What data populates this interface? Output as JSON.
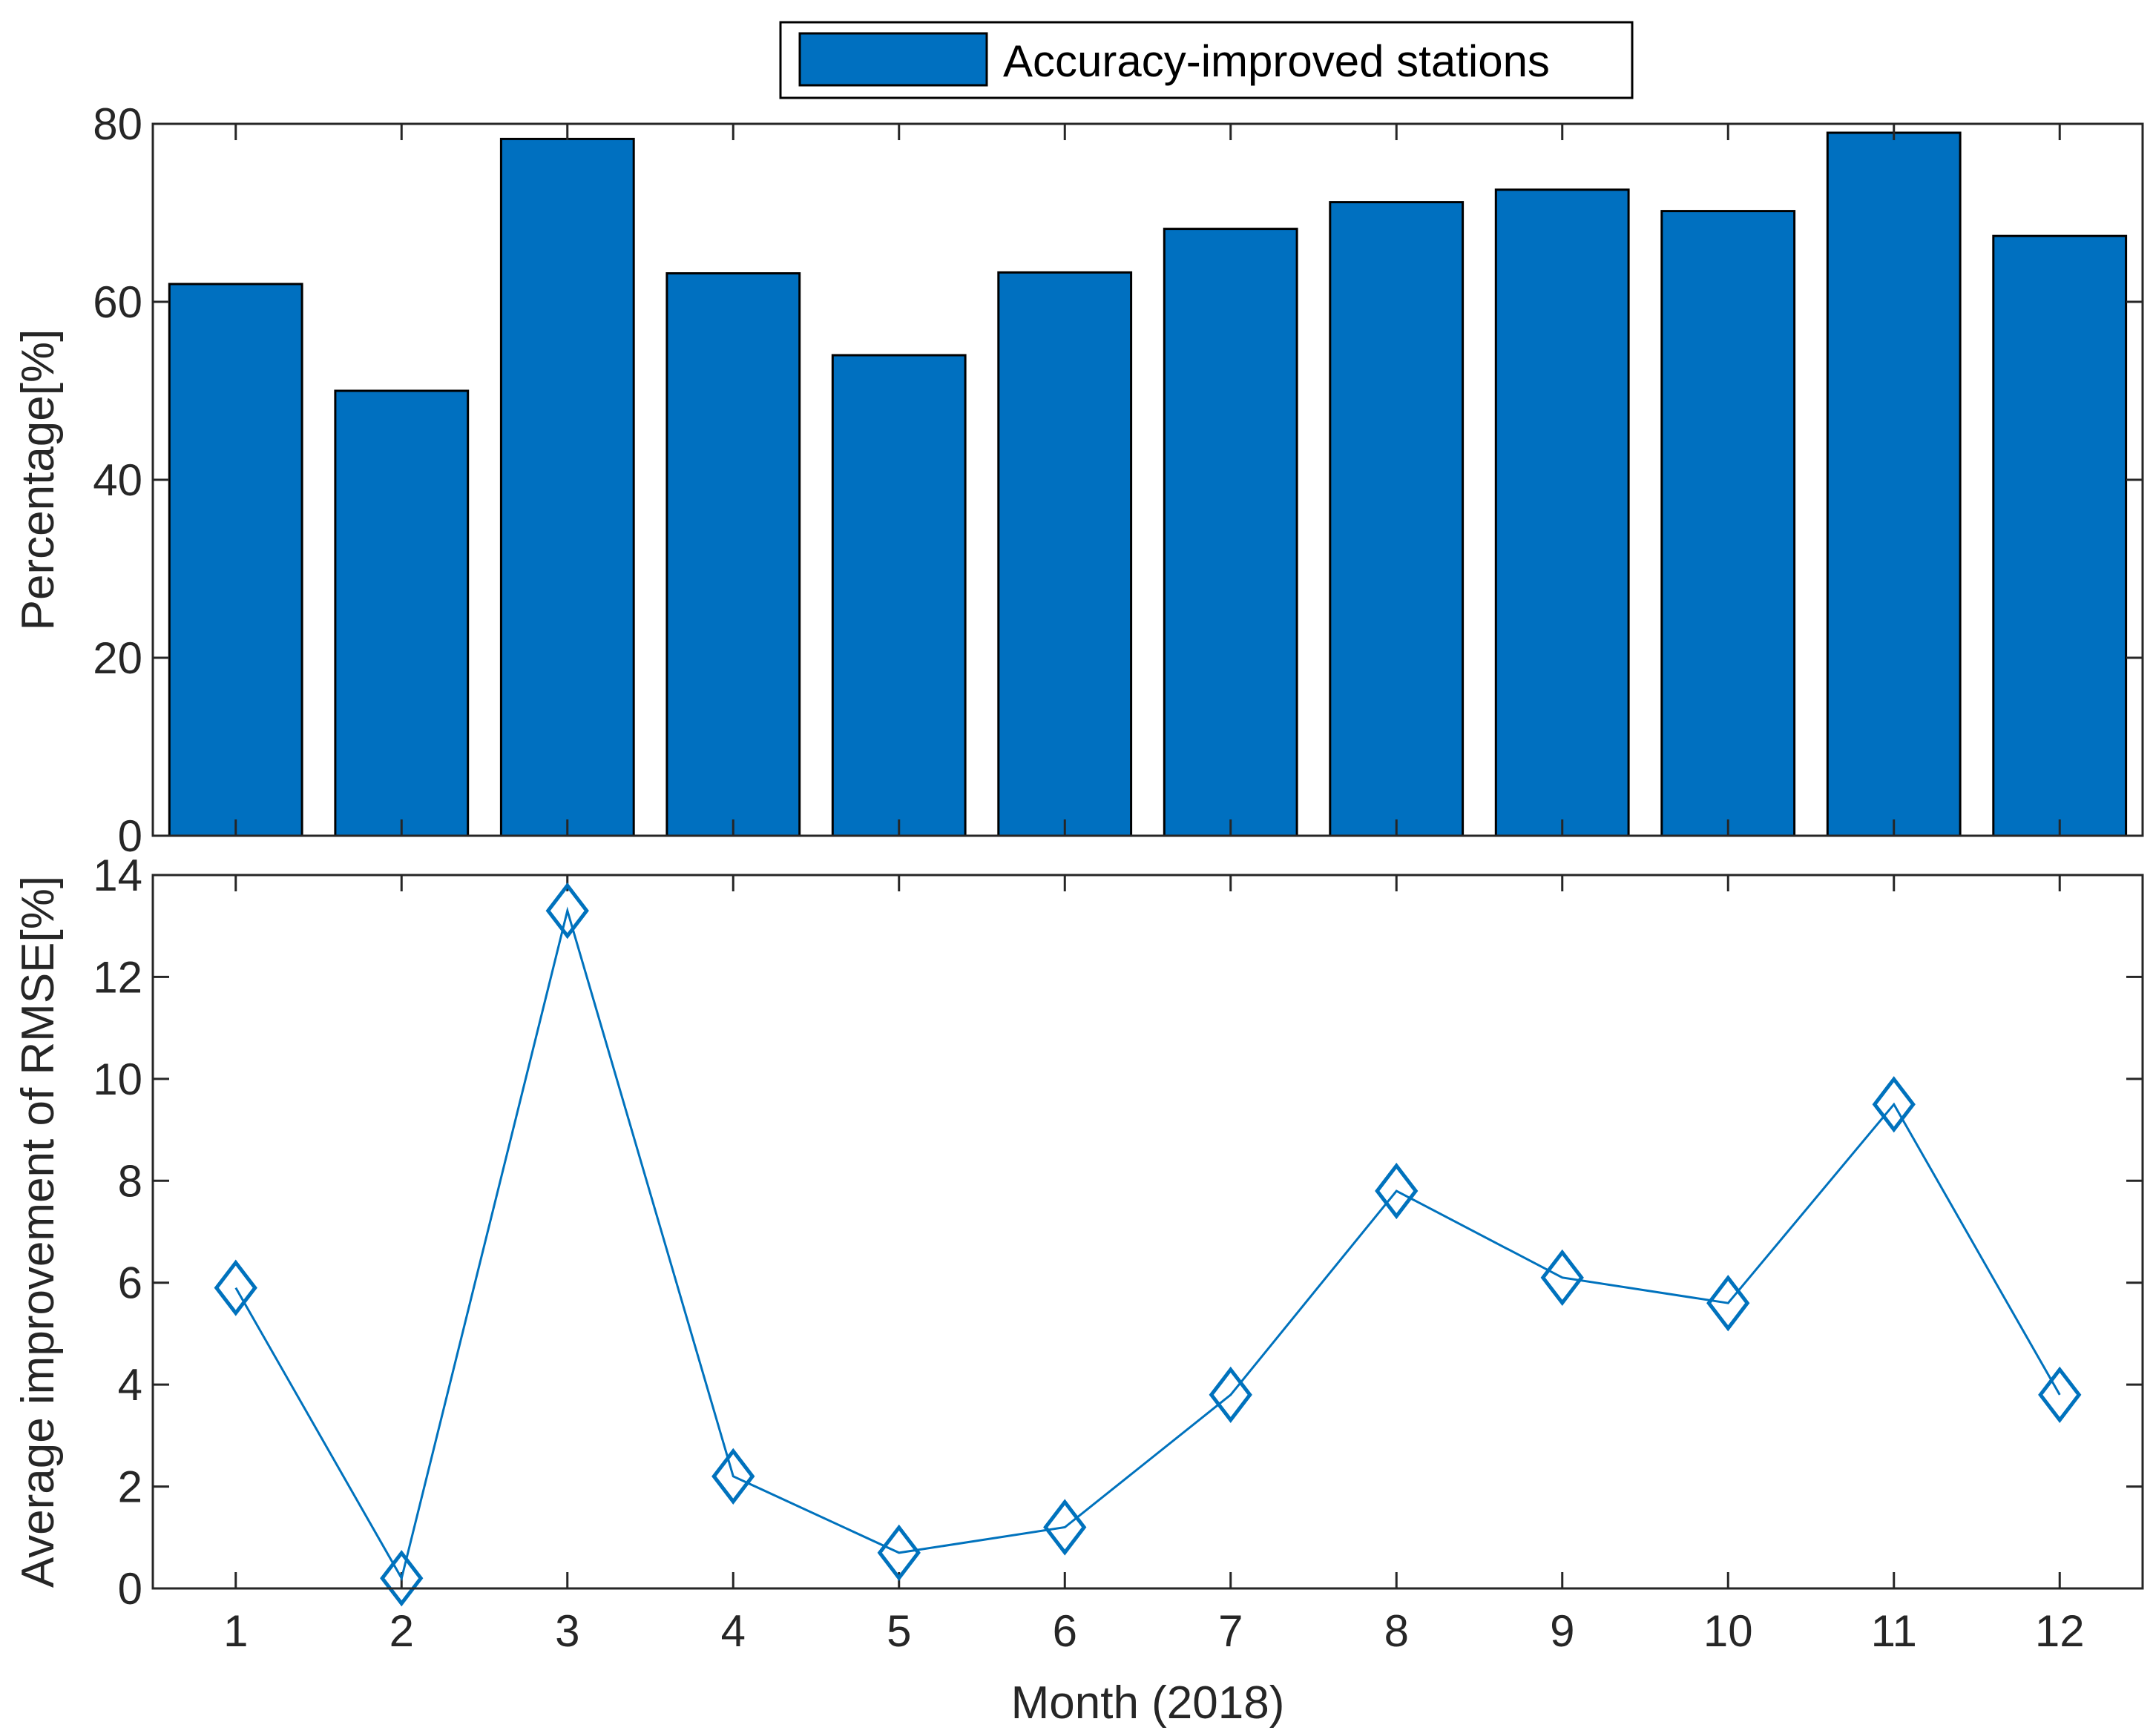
{
  "chart_data": [
    {
      "type": "bar",
      "title": "",
      "categories": [
        "1",
        "2",
        "3",
        "4",
        "5",
        "6",
        "7",
        "8",
        "9",
        "10",
        "11",
        "12"
      ],
      "values": [
        62,
        50,
        78.3,
        63.2,
        54,
        63.3,
        68.2,
        71.2,
        72.6,
        70.2,
        79,
        67.4
      ],
      "xlabel": "",
      "ylabel": "Percentage[%]",
      "ylim": [
        0,
        80
      ],
      "xlim": [
        0.5,
        12.5
      ],
      "yticks": [
        "0",
        "20",
        "40",
        "60",
        "80"
      ],
      "grid": false,
      "legend": {
        "entries": [
          "Accuracy-improved stations"
        ],
        "placement": "top-center-outside"
      },
      "colors": {
        "bar_fill": "#0070C0",
        "bar_edge": "#000000"
      }
    },
    {
      "type": "line",
      "title": "",
      "x": [
        1,
        2,
        3,
        4,
        5,
        6,
        7,
        8,
        9,
        10,
        11,
        12
      ],
      "values": [
        5.9,
        0.2,
        13.3,
        2.2,
        0.7,
        1.2,
        3.8,
        7.8,
        6.1,
        5.6,
        9.5,
        3.8
      ],
      "marker": "diamond",
      "xlabel": "Month (2018)",
      "ylabel": "Average improvement of RMSE[%]",
      "ylim": [
        0,
        14
      ],
      "xlim": [
        0.5,
        12.5
      ],
      "xticks": [
        "1",
        "2",
        "3",
        "4",
        "5",
        "6",
        "7",
        "8",
        "9",
        "10",
        "11",
        "12"
      ],
      "yticks": [
        "0",
        "2",
        "4",
        "6",
        "8",
        "10",
        "12",
        "14"
      ],
      "grid": false,
      "colors": {
        "line": "#0072BD"
      }
    }
  ]
}
